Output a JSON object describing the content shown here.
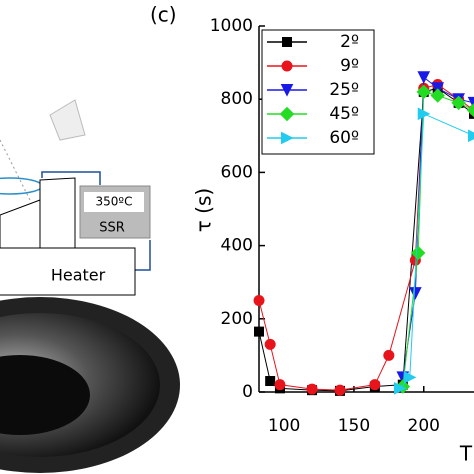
{
  "panel_label": "(c)",
  "diagram": {
    "labels": [
      "350ºC",
      "SSR",
      "Heater"
    ]
  },
  "chart_data": {
    "type": "line",
    "y_label": "τ (s)",
    "x_label": "T",
    "xlim": [
      82,
      236
    ],
    "xticks": [
      100,
      150,
      200
    ],
    "ylim": [
      0,
      1000
    ],
    "yticks": [
      0,
      200,
      400,
      600,
      800,
      1000
    ],
    "legend": "top-left",
    "series": [
      {
        "name": "2º",
        "color": "#000000",
        "marker": "square",
        "x": [
          82,
          90,
          97,
          120,
          140,
          165,
          185,
          200,
          210,
          225,
          236
        ],
        "values": [
          165,
          30,
          10,
          5,
          3,
          15,
          20,
          820,
          830,
          790,
          760
        ]
      },
      {
        "name": "9º",
        "color": "#e8141b",
        "marker": "circle",
        "x": [
          82,
          90,
          97,
          120,
          140,
          165,
          175,
          194,
          200,
          210,
          225,
          236
        ],
        "values": [
          250,
          130,
          20,
          8,
          5,
          20,
          100,
          360,
          830,
          840,
          800,
          770
        ]
      },
      {
        "name": "25º",
        "color": "#1a1ae6",
        "marker": "triangle-down",
        "x": [
          185,
          194,
          200,
          210,
          225,
          236
        ],
        "values": [
          40,
          270,
          860,
          830,
          800,
          790
        ]
      },
      {
        "name": "45º",
        "color": "#22dd22",
        "marker": "diamond",
        "x": [
          185,
          196,
          200,
          210,
          225,
          236
        ],
        "values": [
          15,
          380,
          820,
          810,
          790,
          770
        ]
      },
      {
        "name": "60º",
        "color": "#22ccee",
        "marker": "triangle-right",
        "x": [
          183,
          190,
          200,
          236
        ],
        "values": [
          10,
          40,
          760,
          700
        ]
      }
    ]
  }
}
